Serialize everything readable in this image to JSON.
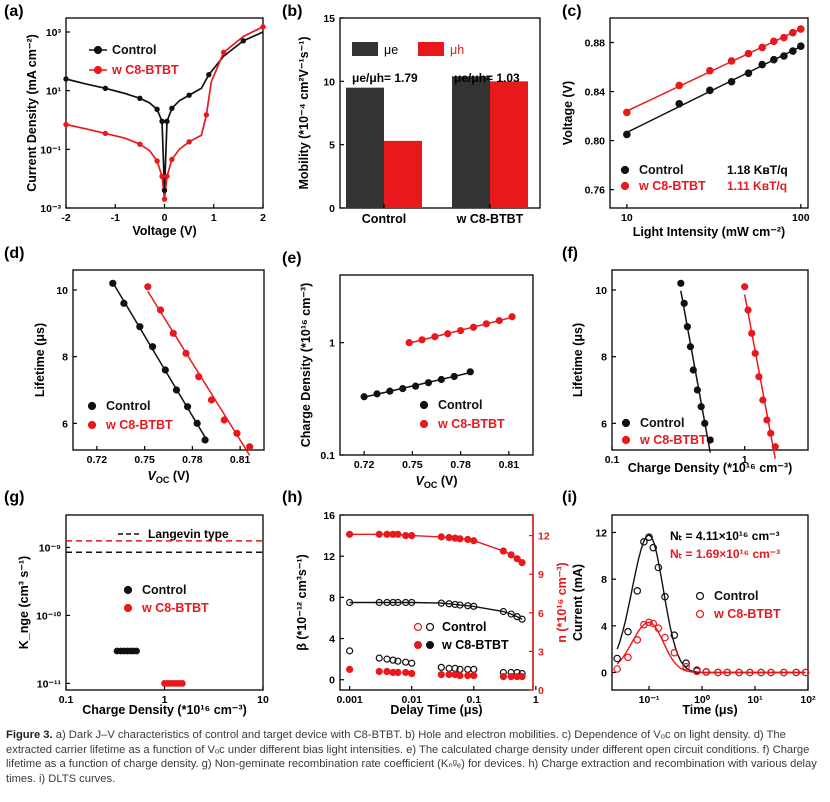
{
  "colors": {
    "control": "#111111",
    "c8": "#e8191c",
    "axis": "#000000"
  },
  "chart_data": [
    {
      "panel": "(a)",
      "type": "line",
      "xlabel": "Voltage (V)",
      "ylabel": "Current Density (mA cm⁻²)",
      "yscale": "log",
      "xlim": [
        -2,
        2
      ],
      "ylim": [
        0.001,
        3000
      ],
      "xticks": [
        "-2",
        "-1",
        "0",
        "1",
        "2"
      ],
      "yticks": [
        "10⁻³",
        "10⁻¹",
        "10¹",
        "10³"
      ],
      "legend": [
        "Control",
        "w C8-BTBT"
      ],
      "series": [
        {
          "name": "Control",
          "x": [
            -2,
            -1.6,
            -1.2,
            -0.8,
            -0.5,
            -0.3,
            -0.15,
            -0.05,
            0,
            0.05,
            0.15,
            0.3,
            0.5,
            0.75,
            0.9,
            1.2,
            1.6,
            2
          ],
          "y": [
            25,
            17,
            12,
            8,
            5.5,
            3.8,
            2.3,
            0.9,
            0.004,
            0.9,
            2.5,
            4.5,
            7,
            12,
            35,
            150,
            500,
            1000
          ]
        },
        {
          "name": "w C8-BTBT",
          "x": [
            -2,
            -1.6,
            -1.2,
            -0.8,
            -0.5,
            -0.3,
            -0.15,
            -0.05,
            0,
            0.05,
            0.15,
            0.3,
            0.5,
            0.75,
            0.85,
            0.95,
            1.2,
            1.6,
            2
          ],
          "y": [
            0.7,
            0.5,
            0.35,
            0.24,
            0.15,
            0.09,
            0.04,
            0.012,
            0.002,
            0.012,
            0.045,
            0.1,
            0.18,
            0.3,
            1.5,
            20,
            200,
            700,
            1500
          ]
        }
      ]
    },
    {
      "panel": "(b)",
      "type": "bar",
      "ylabel": "Mobility (*10⁻⁴ cm²V⁻¹s⁻¹)",
      "ylim": [
        0,
        15
      ],
      "yticks": [
        "0",
        "5",
        "10",
        "15"
      ],
      "categories": [
        "Control",
        "w C8-BTBT"
      ],
      "legend": [
        "μe",
        "μh"
      ],
      "series": [
        {
          "name": "μe",
          "values": [
            9.5,
            10.4
          ]
        },
        {
          "name": "μh",
          "values": [
            5.3,
            10.0
          ]
        }
      ],
      "annotations": [
        "μe/μh= 1.79",
        "μe/μh= 1.03"
      ]
    },
    {
      "panel": "(c)",
      "type": "scatter",
      "xlabel": "Light Intensity (mW cm⁻²)",
      "ylabel": "Voltage (V)",
      "xscale": "log",
      "xlim": [
        8,
        110
      ],
      "ylim": [
        0.745,
        0.9
      ],
      "xticks": [
        "10",
        "100"
      ],
      "yticks": [
        "0.76",
        "0.80",
        "0.84",
        "0.88"
      ],
      "legend": [
        "Control",
        "w C8-BTBT"
      ],
      "slopes": [
        "1.18 KʙT/q",
        "1.11 KʙT/q"
      ],
      "series": [
        {
          "name": "Control",
          "x": [
            10,
            20,
            30,
            40,
            50,
            60,
            70,
            80,
            90,
            100
          ],
          "y": [
            0.805,
            0.83,
            0.841,
            0.848,
            0.855,
            0.862,
            0.866,
            0.869,
            0.873,
            0.877
          ]
        },
        {
          "name": "w C8-BTBT",
          "x": [
            10,
            20,
            30,
            40,
            50,
            60,
            70,
            80,
            90,
            100
          ],
          "y": [
            0.823,
            0.845,
            0.857,
            0.865,
            0.871,
            0.876,
            0.881,
            0.884,
            0.888,
            0.891
          ]
        }
      ]
    },
    {
      "panel": "(d)",
      "type": "scatter",
      "xlabel": "V_OC (V)",
      "ylabel": "Lifetime (μs)",
      "xlim": [
        0.705,
        0.825
      ],
      "ylim": [
        5.2,
        10.6
      ],
      "xticks": [
        "0.72",
        "0.75",
        "0.78",
        "0.81"
      ],
      "yticks": [
        "6",
        "8",
        "10"
      ],
      "legend": [
        "Control",
        "w C8-BTBT"
      ],
      "series": [
        {
          "name": "Control",
          "x": [
            0.73,
            0.737,
            0.747,
            0.755,
            0.763,
            0.77,
            0.777,
            0.783,
            0.788
          ],
          "y": [
            10.2,
            9.6,
            8.9,
            8.3,
            7.6,
            7.0,
            6.5,
            6.0,
            5.5
          ]
        },
        {
          "name": "w C8-BTBT",
          "x": [
            0.752,
            0.76,
            0.768,
            0.776,
            0.784,
            0.792,
            0.8,
            0.808,
            0.816
          ],
          "y": [
            10.1,
            9.4,
            8.7,
            8.1,
            7.4,
            6.7,
            6.1,
            5.7,
            5.3
          ]
        }
      ]
    },
    {
      "panel": "(e)",
      "type": "scatter",
      "xlabel": "V_OC (V)",
      "ylabel": "Charge Density (*10¹⁶ cm⁻³)",
      "yscale": "log",
      "xlim": [
        0.705,
        0.825
      ],
      "ylim": [
        0.1,
        4
      ],
      "xticks": [
        "0.72",
        "0.75",
        "0.78",
        "0.81"
      ],
      "yticks": [
        "0.1",
        "1"
      ],
      "legend": [
        "Control",
        "w C8-BTBT"
      ],
      "series": [
        {
          "name": "Control",
          "x": [
            0.72,
            0.728,
            0.736,
            0.744,
            0.752,
            0.76,
            0.768,
            0.776,
            0.786
          ],
          "y": [
            0.33,
            0.35,
            0.37,
            0.39,
            0.41,
            0.44,
            0.47,
            0.5,
            0.55
          ]
        },
        {
          "name": "w C8-BTBT",
          "x": [
            0.748,
            0.756,
            0.764,
            0.772,
            0.78,
            0.788,
            0.796,
            0.804,
            0.812
          ],
          "y": [
            1.0,
            1.06,
            1.13,
            1.2,
            1.28,
            1.37,
            1.47,
            1.57,
            1.7
          ]
        }
      ]
    },
    {
      "panel": "(f)",
      "type": "scatter",
      "xlabel": "Charge Density (*10¹⁶ cm⁻³)",
      "ylabel": "Lifetime (μs)",
      "xscale": "log",
      "xlim": [
        0.1,
        3
      ],
      "ylim": [
        5.2,
        10.6
      ],
      "xticks": [
        "0.1",
        "1"
      ],
      "yticks": [
        "6",
        "8",
        "10"
      ],
      "legend": [
        "Control",
        "w C8-BTBT"
      ],
      "series": [
        {
          "name": "Control",
          "x": [
            0.33,
            0.35,
            0.37,
            0.39,
            0.41,
            0.44,
            0.47,
            0.5,
            0.55
          ],
          "y": [
            10.2,
            9.6,
            8.9,
            8.3,
            7.6,
            7.0,
            6.5,
            6.0,
            5.5
          ]
        },
        {
          "name": "w C8-BTBT",
          "x": [
            1.0,
            1.06,
            1.13,
            1.2,
            1.28,
            1.37,
            1.47,
            1.57,
            1.7
          ],
          "y": [
            10.1,
            9.4,
            8.7,
            8.1,
            7.4,
            6.7,
            6.1,
            5.7,
            5.3
          ]
        }
      ]
    },
    {
      "panel": "(g)",
      "type": "scatter",
      "xlabel": "Charge Density (*10¹⁶ cm⁻³)",
      "ylabel": "K_nge (cm³ s⁻¹)",
      "xscale": "log",
      "yscale": "log",
      "xlim": [
        0.1,
        10
      ],
      "ylim": [
        8e-12,
        3e-09
      ],
      "xticks": [
        "0.1",
        "1",
        "10"
      ],
      "yticks": [
        "10⁻¹¹",
        "10⁻¹⁰",
        "10⁻⁹"
      ],
      "legend": [
        "Control",
        "w C8-BTBT"
      ],
      "reference_label": "Langevin type",
      "reference_lines": [
        {
          "name": "Control Langevin",
          "y": 8.5e-10
        },
        {
          "name": "w C8-BTBT Langevin",
          "y": 1.25e-09
        }
      ],
      "series": [
        {
          "name": "Control",
          "x": [
            0.33,
            0.36,
            0.39,
            0.42,
            0.45,
            0.48,
            0.52
          ],
          "y": [
            3e-11,
            3e-11,
            3e-11,
            3e-11,
            3e-11,
            3e-11,
            3e-11
          ]
        },
        {
          "name": "w C8-BTBT",
          "x": [
            1.0,
            1.08,
            1.16,
            1.24,
            1.32,
            1.42,
            1.52
          ],
          "y": [
            1e-11,
            1e-11,
            1e-11,
            1e-11,
            1e-11,
            1e-11,
            1e-11
          ]
        }
      ]
    },
    {
      "panel": "(h)",
      "type": "scatter",
      "xlabel": "Delay Time (μs)",
      "ylabel": "β (*10⁻¹² cm³s⁻¹)",
      "ylabel_right": "n (*10¹⁶ cm⁻³)",
      "xscale": "log",
      "xlim": [
        0.0007,
        0.9
      ],
      "ylim": [
        -1,
        16
      ],
      "ylim_right": [
        0,
        13.6
      ],
      "xticks": [
        "0.001",
        "0.01",
        "0.1",
        "1"
      ],
      "yticks": [
        "0",
        "4",
        "8",
        "12",
        "16"
      ],
      "yticks_right": [
        "0",
        "3",
        "6",
        "9",
        "12"
      ],
      "legend": [
        "Control",
        "w C8-BTBT"
      ],
      "series": [
        {
          "name": "n Control",
          "axis": "right",
          "fill": "open",
          "x": [
            0.001,
            0.003,
            0.004,
            0.005,
            0.006,
            0.008,
            0.01,
            0.03,
            0.04,
            0.05,
            0.06,
            0.08,
            0.1,
            0.3,
            0.4,
            0.5,
            0.6
          ],
          "y": [
            6.8,
            6.8,
            6.8,
            6.8,
            6.8,
            6.8,
            6.8,
            6.75,
            6.7,
            6.65,
            6.6,
            6.55,
            6.5,
            6.1,
            5.9,
            5.7,
            5.5
          ]
        },
        {
          "name": "n w C8-BTBT",
          "axis": "right",
          "fill": "solid",
          "x": [
            0.001,
            0.003,
            0.004,
            0.005,
            0.006,
            0.008,
            0.01,
            0.03,
            0.04,
            0.05,
            0.06,
            0.08,
            0.1,
            0.3,
            0.4,
            0.5,
            0.6
          ],
          "y": [
            12.1,
            12.1,
            12.1,
            12.1,
            12.1,
            12.0,
            12.0,
            11.9,
            11.85,
            11.8,
            11.75,
            11.7,
            11.6,
            10.8,
            10.5,
            10.2,
            9.9
          ]
        },
        {
          "name": "β Control",
          "axis": "left",
          "fill": "open",
          "x": [
            0.001,
            0.003,
            0.004,
            0.005,
            0.006,
            0.008,
            0.01,
            0.03,
            0.04,
            0.05,
            0.06,
            0.08,
            0.1,
            0.3,
            0.4,
            0.5,
            0.6
          ],
          "y": [
            2.8,
            2.1,
            2.0,
            1.9,
            1.8,
            1.7,
            1.6,
            1.2,
            1.1,
            1.1,
            1.0,
            1.0,
            1.0,
            0.7,
            0.7,
            0.7,
            0.6
          ]
        },
        {
          "name": "β w C8-BTBT",
          "axis": "left",
          "fill": "solid",
          "x": [
            0.001,
            0.003,
            0.004,
            0.005,
            0.006,
            0.008,
            0.01,
            0.03,
            0.04,
            0.05,
            0.06,
            0.08,
            0.1,
            0.3,
            0.4,
            0.5,
            0.6
          ],
          "y": [
            1.0,
            0.8,
            0.8,
            0.7,
            0.7,
            0.7,
            0.6,
            0.5,
            0.5,
            0.5,
            0.4,
            0.4,
            0.4,
            0.3,
            0.3,
            0.3,
            0.3
          ]
        }
      ]
    },
    {
      "panel": "(i)",
      "type": "scatter",
      "xlabel": "Time (μs)",
      "ylabel": "Current (mA)",
      "xscale": "log",
      "xlim": [
        0.02,
        100
      ],
      "ylim": [
        -1.5,
        13.5
      ],
      "xticks": [
        "10⁻¹",
        "10⁰",
        "10¹",
        "10²"
      ],
      "yticks": [
        "0",
        "4",
        "8",
        "12"
      ],
      "legend": [
        "Control",
        "w C8-BTBT"
      ],
      "annotations": [
        "Nₜ = 4.11×10¹⁶ cm⁻³",
        "Nₜ = 1.69×10¹⁶ cm⁻³"
      ],
      "series": [
        {
          "name": "Control",
          "x": [
            0.025,
            0.04,
            0.06,
            0.08,
            0.1,
            0.12,
            0.15,
            0.2,
            0.3,
            0.5,
            0.8,
            1.2,
            2,
            3,
            5,
            8,
            13,
            20,
            35,
            60,
            90
          ],
          "y": [
            1.2,
            3.5,
            7,
            11.2,
            11.6,
            10.7,
            9,
            6.5,
            3.2,
            0.8,
            0.2,
            0.05,
            0,
            0,
            0,
            0,
            0,
            0,
            0,
            0,
            0
          ]
        },
        {
          "name": "w C8-BTBT",
          "x": [
            0.025,
            0.04,
            0.06,
            0.08,
            0.1,
            0.12,
            0.15,
            0.2,
            0.3,
            0.5,
            0.8,
            1.2,
            2,
            3,
            5,
            8,
            13,
            20,
            35,
            60,
            90
          ],
          "y": [
            0.3,
            1.3,
            2.8,
            4.1,
            4.3,
            4.2,
            3.8,
            3.0,
            1.7,
            0.5,
            0.1,
            0.05,
            0,
            0,
            0,
            0,
            0,
            0,
            0,
            0,
            0
          ]
        }
      ]
    }
  ],
  "caption": {
    "figure_label": "Figure 3.",
    "text": "a) Dark J–V characteristics of control and target device with C8-BTBT. b) Hole and electron mobilities. c) Dependence of Vₒᴄ on light density. d) The extracted carrier lifetime as a function of Vₒᴄ under different bias light intensities. e) The calculated charge density under different open circuit conditions. f) Charge lifetime as a function of charge density. g) Non-geminate recombination rate coefficient (Kₙᵍₑ) for devices. h) Charge extraction and recombination with various delay times. i) DLTS curves."
  }
}
